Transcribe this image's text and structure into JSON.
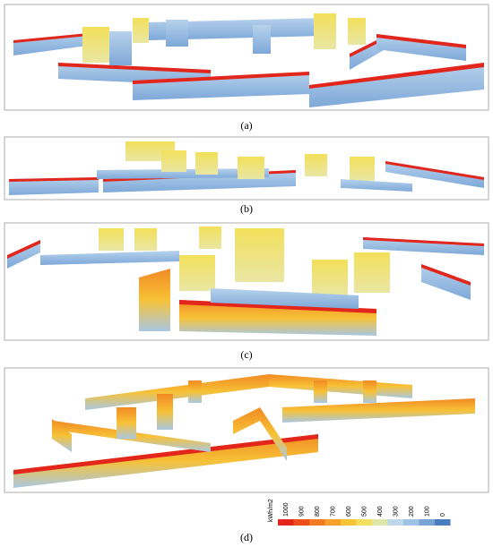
{
  "panels": [
    {
      "label": "(a)"
    },
    {
      "label": "(b)"
    },
    {
      "label": "(c)"
    },
    {
      "label": "(d)"
    }
  ],
  "legend": {
    "unit": "kWh/m2",
    "stops": [
      {
        "value": 1000,
        "color": "#e3261c"
      },
      {
        "value": 900,
        "color": "#ee4d1c"
      },
      {
        "value": 800,
        "color": "#f47a20"
      },
      {
        "value": 700,
        "color": "#f8a02a"
      },
      {
        "value": 600,
        "color": "#f7c435"
      },
      {
        "value": 500,
        "color": "#f2df5e"
      },
      {
        "value": 400,
        "color": "#dfe6a9"
      },
      {
        "value": 300,
        "color": "#bcd6ea"
      },
      {
        "value": 200,
        "color": "#9fc3e6"
      },
      {
        "value": 100,
        "color": "#78a4d5"
      },
      {
        "value": 0,
        "color": "#4a7dbd"
      }
    ]
  }
}
